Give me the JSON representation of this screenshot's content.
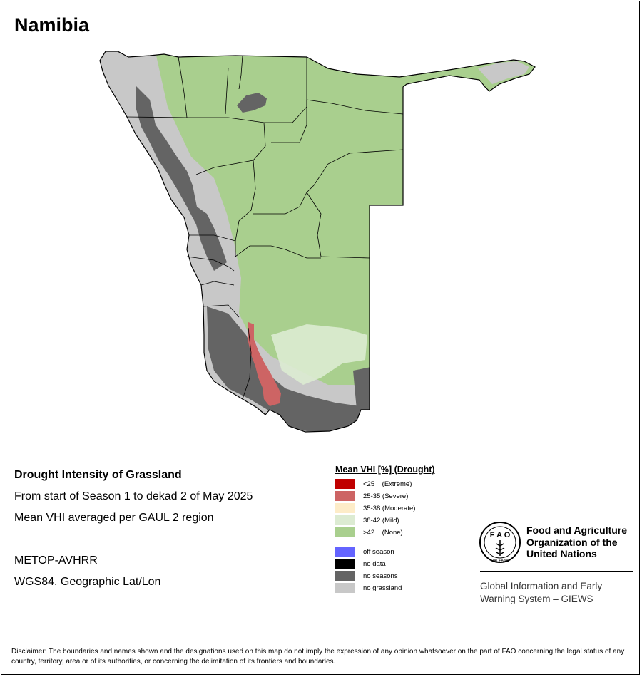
{
  "map_title": "Namibia",
  "info": {
    "line1": "Drought Intensity of Grassland",
    "line2": "From start of Season 1 to dekad 2 of May 2025",
    "line3": "Mean VHI averaged per GAUL 2 region",
    "line4": "METOP-AVHRR",
    "line5": "WGS84, Geographic Lat/Lon"
  },
  "legend": {
    "title": "Mean VHI [%] (Drought)",
    "items": [
      {
        "label": "<25    (Extreme)",
        "color": "#c00000"
      },
      {
        "label": "25-35 (Severe)",
        "color": "#cd6464"
      },
      {
        "label": "35-38 (Moderate)",
        "color": "#fdecc8"
      },
      {
        "label": "38-42 (Mild)",
        "color": "#dcebd2"
      },
      {
        "label": ">42    (None)",
        "color": "#a9cf8e"
      },
      {
        "label": "off season",
        "color": "#6464ff"
      },
      {
        "label": "no data",
        "color": "#000000"
      },
      {
        "label": "no seasons",
        "color": "#646464"
      },
      {
        "label": "no grassland",
        "color": "#c8c8c8"
      }
    ]
  },
  "org": {
    "name_line1": "Food and Agriculture",
    "name_line2": "Organization of the",
    "name_line3": "United Nations",
    "logo_text": "FAO FIAT PANIS",
    "system_line1": "Global Information and Early",
    "system_line2": "Warning System – GIEWS"
  },
  "disclaimer": "Disclaimer: The boundaries and names shown and the designations used on this map do not imply the expression of any opinion whatsoever on the part of FAO concerning the legal status of any country, territory, area or of its authorities, or concerning the delimitation of its frontiers and boundaries.",
  "colors": {
    "none": "#a9cf8e",
    "severe": "#cd6464",
    "no_seasons": "#646464",
    "no_grassland": "#c8c8c8",
    "mild": "#dcebd2",
    "boundary": "#000000"
  }
}
